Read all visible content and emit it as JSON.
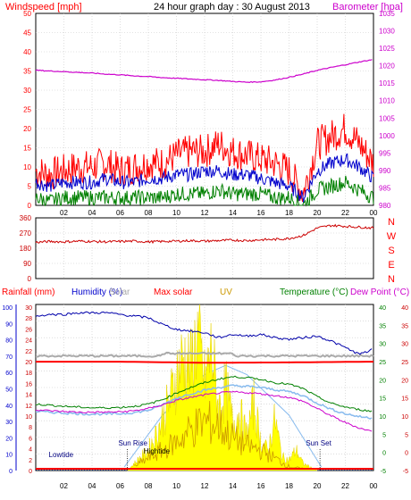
{
  "colors": {
    "frame": "#000000",
    "grid": "#c8c8c8",
    "red": "#ff0000",
    "darkred": "#cc0000",
    "magenta": "#cc00cc",
    "blue": "#0000cc",
    "green": "#008000",
    "gray": "#aaaaaa",
    "orange": "#cc9900",
    "yellow": "#ffff00",
    "lightblue": "#88bbee",
    "violet": "#cc00cc",
    "humidity": "#0000aa"
  },
  "chart_data": [
    {
      "type": "line",
      "title": "24 hour graph day : 30 August 2013",
      "left_axis_label": "Windspeed [mph]",
      "right_axis_label": "Barometer [hpa]",
      "left_ticks": [
        "50",
        "45",
        "40",
        "35",
        "30",
        "25",
        "20",
        "15",
        "10",
        "5",
        "0"
      ],
      "right_ticks": [
        "1035",
        "1030",
        "1025",
        "1020",
        "1015",
        "1010",
        "1005",
        "1000",
        "995",
        "990",
        "985",
        "980"
      ],
      "x_ticks": [
        "02",
        "04",
        "06",
        "08",
        "10",
        "12",
        "14",
        "16",
        "18",
        "20",
        "22",
        "00"
      ],
      "ylim_left": [
        0,
        50
      ],
      "ylim_right": [
        980,
        1035
      ],
      "x_range_hours": [
        0,
        24
      ],
      "series": [
        {
          "name": "Barometer",
          "axis": "right",
          "x": [
            0,
            1,
            2,
            3,
            4,
            5,
            6,
            7,
            8,
            9,
            10,
            11,
            12,
            13,
            14,
            15,
            16,
            17,
            18,
            19,
            20,
            21,
            22,
            23,
            24
          ],
          "values": [
            1018.7,
            1018.5,
            1018.3,
            1018.1,
            1017.9,
            1017.6,
            1017.4,
            1017.1,
            1016.9,
            1016.6,
            1016.4,
            1016.2,
            1016.0,
            1015.8,
            1015.5,
            1015.3,
            1015.4,
            1015.9,
            1016.7,
            1017.6,
            1018.7,
            1019.5,
            1020.3,
            1021.1,
            1021.8
          ]
        },
        {
          "name": "Wind gust",
          "axis": "left",
          "x": [
            0,
            1,
            2,
            3,
            4,
            5,
            6,
            7,
            8,
            9,
            10,
            11,
            12,
            13,
            14,
            15,
            16,
            17,
            18,
            19,
            20,
            21,
            22,
            23,
            24
          ],
          "values": [
            9,
            8,
            9,
            10,
            10,
            11,
            9,
            10,
            11,
            11,
            13,
            14,
            14,
            16,
            14,
            13,
            12,
            11,
            9,
            3,
            16,
            18,
            20,
            16,
            11
          ]
        },
        {
          "name": "Wind average",
          "axis": "left",
          "x": [
            0,
            1,
            2,
            3,
            4,
            5,
            6,
            7,
            8,
            9,
            10,
            11,
            12,
            13,
            14,
            15,
            16,
            17,
            18,
            19,
            20,
            21,
            22,
            23,
            24
          ],
          "values": [
            6,
            5,
            6,
            6,
            6,
            7,
            6,
            6,
            7,
            7,
            8,
            8,
            9,
            9,
            8,
            8,
            7,
            6,
            5,
            2,
            9,
            11,
            12,
            10,
            7
          ]
        },
        {
          "name": "Wind lull",
          "axis": "left",
          "x": [
            0,
            1,
            2,
            3,
            4,
            5,
            6,
            7,
            8,
            9,
            10,
            11,
            12,
            13,
            14,
            15,
            16,
            17,
            18,
            19,
            20,
            21,
            22,
            23,
            24
          ],
          "values": [
            2,
            1,
            2,
            2,
            2,
            2,
            2,
            2,
            2,
            2,
            3,
            3,
            3,
            4,
            3,
            3,
            3,
            2,
            2,
            0,
            4,
            5,
            6,
            4,
            2
          ]
        }
      ]
    },
    {
      "type": "line",
      "title": "",
      "left_ticks": [
        "360",
        "270",
        "180",
        "90",
        "0"
      ],
      "right_ticks": [
        "N",
        "W",
        "S",
        "E",
        "N"
      ],
      "x_ticks": [
        "02",
        "04",
        "06",
        "08",
        "10",
        "12",
        "14",
        "16",
        "18",
        "20",
        "22",
        "00"
      ],
      "ylim": [
        0,
        360
      ],
      "x_range_hours": [
        0,
        24
      ],
      "series": [
        {
          "name": "Wind direction",
          "x": [
            0,
            1,
            2,
            3,
            4,
            5,
            6,
            7,
            8,
            9,
            10,
            11,
            12,
            13,
            14,
            15,
            16,
            17,
            18,
            19,
            20,
            21,
            22,
            23,
            24
          ],
          "values": [
            215,
            220,
            218,
            222,
            220,
            218,
            220,
            222,
            218,
            220,
            222,
            225,
            222,
            225,
            228,
            225,
            230,
            232,
            238,
            255,
            300,
            315,
            310,
            305,
            300
          ]
        }
      ]
    },
    {
      "type": "line",
      "legend": [
        "Rainfall (mm)",
        "Humidity (%)",
        "Solar",
        "Max solar",
        "UV",
        "Temperature (°C)",
        "Dew Point (°C)"
      ],
      "axis_1_ticks": [
        "100",
        "90",
        "80",
        "70",
        "60",
        "50",
        "40",
        "30",
        "20",
        "10",
        "0"
      ],
      "axis_2_ticks": [
        "30",
        "28",
        "26",
        "24",
        "22",
        "20",
        "18",
        "16",
        "14",
        "12",
        "10",
        "8",
        "6",
        "4",
        "2",
        "0"
      ],
      "axis_3_ticks": [
        "40",
        "35",
        "30",
        "25",
        "20",
        "15",
        "10",
        "5",
        "0",
        "-5"
      ],
      "axis_4_ticks": [
        "40",
        "35",
        "30",
        "25",
        "20",
        "15",
        "10",
        "5",
        "0",
        "-5"
      ],
      "x_ticks": [
        "02",
        "04",
        "06",
        "08",
        "10",
        "12",
        "14",
        "16",
        "18",
        "20",
        "22",
        "00"
      ],
      "annotations": [
        "Lowtide",
        "Sun Rise",
        "Hightide",
        "Sun Set"
      ],
      "x_range_hours": [
        0,
        24
      ],
      "temp_range": [
        -5,
        40
      ],
      "humidity_range": [
        0,
        100
      ],
      "series": [
        {
          "name": "Humidity",
          "x": [
            0,
            1,
            2,
            3,
            4,
            5,
            6,
            7,
            8,
            9,
            10,
            11,
            12,
            13,
            14,
            15,
            16,
            17,
            18,
            19,
            20,
            21,
            22,
            23,
            24
          ],
          "values": [
            93,
            94,
            94,
            95,
            95,
            95,
            94,
            93,
            92,
            88,
            85,
            84,
            83,
            80,
            82,
            81,
            82,
            80,
            79,
            80,
            81,
            78,
            74,
            70,
            73
          ]
        },
        {
          "name": "Max solar",
          "x": [
            0,
            6,
            12,
            18,
            24
          ],
          "values": [
            24.5,
            24.5,
            24.2,
            24.3,
            24.5
          ]
        },
        {
          "name": "Temperature",
          "x": [
            0,
            1,
            2,
            3,
            4,
            5,
            6,
            7,
            8,
            9,
            10,
            11,
            12,
            13,
            14,
            15,
            16,
            17,
            18,
            19,
            20,
            21,
            22,
            23,
            24
          ],
          "values": [
            13,
            12.7,
            12.4,
            12.2,
            12.0,
            12.0,
            12.1,
            12.4,
            13.0,
            14.2,
            16.0,
            17.5,
            18.8,
            19.8,
            20.4,
            20.2,
            19.7,
            18.8,
            18.4,
            17.2,
            15.0,
            13.2,
            12.2,
            11.5,
            11.0
          ]
        },
        {
          "name": "Dew Point",
          "x": [
            0,
            1,
            2,
            3,
            4,
            5,
            6,
            7,
            8,
            9,
            10,
            11,
            12,
            13,
            14,
            15,
            16,
            17,
            18,
            19,
            20,
            21,
            22,
            23,
            24
          ],
          "values": [
            11.5,
            11.2,
            11.0,
            10.8,
            10.8,
            10.8,
            10.9,
            11.2,
            11.8,
            12.8,
            14.0,
            14.8,
            15.5,
            16.0,
            16.3,
            16.1,
            15.8,
            15.3,
            14.8,
            13.8,
            11.8,
            9.8,
            8.0,
            6.5,
            5.5
          ]
        },
        {
          "name": "Apparent",
          "x": [
            0,
            1,
            2,
            3,
            4,
            5,
            6,
            7,
            8,
            9,
            10,
            11,
            12,
            13,
            14,
            15,
            16,
            17,
            18,
            19,
            20,
            21,
            22,
            23,
            24
          ],
          "values": [
            11.0,
            10.8,
            10.6,
            10.4,
            10.3,
            10.3,
            10.4,
            10.7,
            11.3,
            12.8,
            14.6,
            15.8,
            16.8,
            17.5,
            18.0,
            17.8,
            17.5,
            16.9,
            16.4,
            15.3,
            13.3,
            11.6,
            10.4,
            9.6,
            9.2
          ]
        },
        {
          "name": "Solar",
          "x": [
            6.5,
            7,
            7.5,
            8,
            8.5,
            9,
            9.5,
            10,
            10.5,
            11,
            11.5,
            12,
            12.5,
            13,
            13.5,
            14,
            14.5,
            15,
            15.5,
            16,
            16.5,
            17,
            17.5,
            18,
            18.5,
            19,
            19.5,
            20
          ],
          "values": [
            0,
            2,
            4,
            6,
            10,
            15,
            20,
            28,
            33,
            30,
            40,
            26,
            35,
            18,
            24,
            14,
            17,
            10,
            20,
            8,
            6,
            15,
            4,
            3,
            6,
            2,
            1,
            0
          ]
        },
        {
          "name": "UV",
          "x": [
            7,
            8,
            9,
            10,
            11,
            12,
            13,
            14,
            15,
            16,
            17,
            18,
            19
          ],
          "values": [
            0.5,
            1.5,
            2.5,
            3.5,
            5,
            6,
            5.5,
            4,
            3,
            2.5,
            1.5,
            0.5,
            0.2
          ]
        },
        {
          "name": "Max solar envelope",
          "x": [
            6.3,
            9,
            12,
            13.5,
            15,
            18,
            20.3
          ],
          "values": [
            -4,
            10,
            21,
            23.5,
            21,
            10,
            -4
          ]
        }
      ]
    }
  ]
}
